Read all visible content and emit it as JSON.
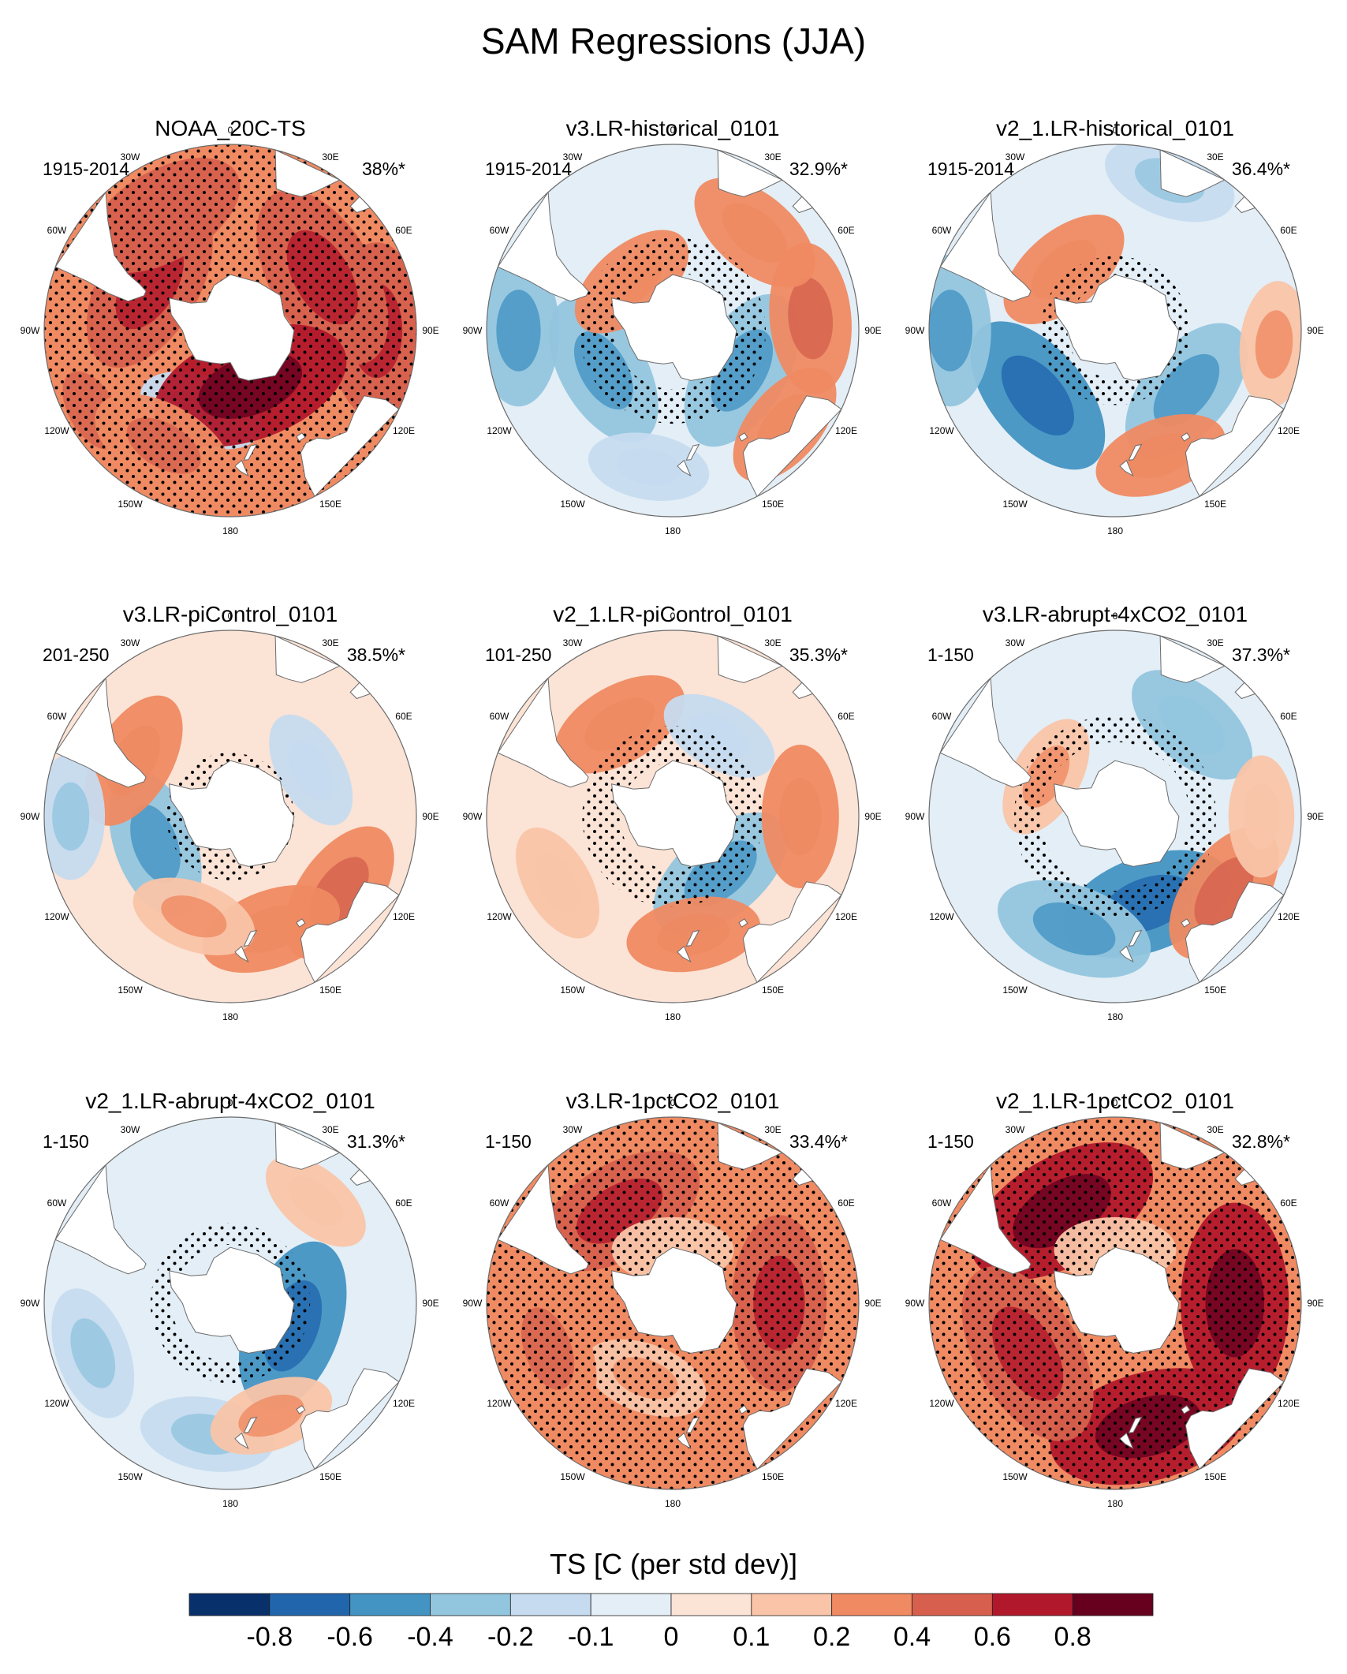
{
  "title": "SAM Regressions (JJA)",
  "colors": {
    "land": "#ffffff",
    "outline": "#6b6b6b",
    "stipple": "#000000",
    "levels": [
      "#08306b",
      "#2166ac",
      "#4393c3",
      "#92c5de",
      "#c6dbef",
      "#e3eef6",
      "#fbe3d6",
      "#f9c4a8",
      "#ef8a62",
      "#d6604d",
      "#b2182b",
      "#67001f"
    ]
  },
  "chart_data": {
    "type": "heatmap",
    "projection": "south-polar-stereographic",
    "variable": "TS",
    "longitude_labels": [
      "0",
      "30E",
      "60E",
      "90E",
      "120E",
      "150E",
      "180",
      "150W",
      "120W",
      "90W",
      "60W",
      "30W"
    ],
    "colorbar": {
      "label": "TS [C (per std dev)]",
      "ticks": [
        "-0.8",
        "-0.6",
        "-0.4",
        "-0.2",
        "-0.1",
        "0",
        "0.1",
        "0.2",
        "0.4",
        "0.6",
        "0.8"
      ],
      "boundaries": [
        -0.8,
        -0.6,
        -0.4,
        -0.2,
        -0.1,
        0,
        0.1,
        0.2,
        0.4,
        0.6,
        0.8
      ]
    },
    "panels": [
      {
        "title": "NOAA_20C-TS",
        "period": "1915-2014",
        "variance": "38%*",
        "background": 0.25,
        "features": [
          {
            "lon": 90,
            "lat": -35,
            "value": 0.45
          },
          {
            "lon": 240,
            "lat": -30,
            "value": 0.35
          },
          {
            "lon": 60,
            "lat": -50,
            "value": 0.55
          },
          {
            "lon": 300,
            "lat": -55,
            "value": 0.5
          },
          {
            "lon": 200,
            "lat": -58,
            "value": -0.15
          },
          {
            "lon": 160,
            "lat": -68,
            "value": 0.6
          },
          {
            "lon": 330,
            "lat": -40,
            "value": 0.4
          },
          {
            "lon": 210,
            "lat": -40,
            "value": 0.3
          }
        ],
        "stipple": {
          "min_lat": -90,
          "max_lat": -20
        }
      },
      {
        "title": "v3.LR-historical_0101",
        "period": "1915-2014",
        "variance": "32.9%*",
        "background": -0.02,
        "features": [
          {
            "lon": 120,
            "lat": -60,
            "value": -0.4
          },
          {
            "lon": 240,
            "lat": -60,
            "value": -0.35
          },
          {
            "lon": 270,
            "lat": -32,
            "value": -0.3
          },
          {
            "lon": 85,
            "lat": -38,
            "value": 0.3
          },
          {
            "lon": 40,
            "lat": -42,
            "value": 0.25
          },
          {
            "lon": 320,
            "lat": -66,
            "value": 0.2
          },
          {
            "lon": 190,
            "lat": -38,
            "value": -0.12
          },
          {
            "lon": 130,
            "lat": -35,
            "value": 0.2
          }
        ],
        "stipple": {
          "min_lat": -68,
          "max_lat": -55
        }
      },
      {
        "title": "v2_1.LR-historical_0101",
        "period": "1915-2014",
        "variance": "36.4%*",
        "background": -0.02,
        "features": [
          {
            "lon": 230,
            "lat": -52,
            "value": -0.45
          },
          {
            "lon": 130,
            "lat": -55,
            "value": -0.35
          },
          {
            "lon": 270,
            "lat": -28,
            "value": -0.3
          },
          {
            "lon": 320,
            "lat": -60,
            "value": 0.25
          },
          {
            "lon": 160,
            "lat": -40,
            "value": 0.2
          },
          {
            "lon": 20,
            "lat": -30,
            "value": -0.2
          },
          {
            "lon": 95,
            "lat": -30,
            "value": 0.15
          }
        ],
        "stipple": {
          "min_lat": -72,
          "max_lat": -62
        }
      },
      {
        "title": "v3.LR-piControl_0101",
        "period": "201-250",
        "variance": "38.5%*",
        "background": 0.02,
        "features": [
          {
            "lon": 250,
            "lat": -60,
            "value": -0.3
          },
          {
            "lon": 300,
            "lat": -48,
            "value": 0.25
          },
          {
            "lon": 125,
            "lat": -40,
            "value": 0.3
          },
          {
            "lon": 160,
            "lat": -45,
            "value": 0.25
          },
          {
            "lon": 270,
            "lat": -30,
            "value": -0.15
          },
          {
            "lon": 60,
            "lat": -55,
            "value": -0.12
          },
          {
            "lon": 200,
            "lat": -50,
            "value": 0.15
          }
        ],
        "stipple": {
          "min_lat": -76,
          "max_lat": -66
        }
      },
      {
        "title": "v2_1.LR-piControl_0101",
        "period": "101-250",
        "variance": "35.3%*",
        "background": 0.05,
        "features": [
          {
            "lon": 140,
            "lat": -62,
            "value": -0.35
          },
          {
            "lon": 90,
            "lat": -42,
            "value": 0.25
          },
          {
            "lon": 330,
            "lat": -50,
            "value": 0.25
          },
          {
            "lon": 170,
            "lat": -45,
            "value": 0.2
          },
          {
            "lon": 240,
            "lat": -40,
            "value": 0.12
          },
          {
            "lon": 30,
            "lat": -55,
            "value": -0.12
          }
        ],
        "stipple": {
          "min_lat": -70,
          "max_lat": -56
        }
      },
      {
        "title": "v3.LR-abrupt-4xCO2_0101",
        "period": "1-150",
        "variance": "37.3%*",
        "background": -0.03,
        "features": [
          {
            "lon": 160,
            "lat": -55,
            "value": -0.45
          },
          {
            "lon": 200,
            "lat": -45,
            "value": -0.35
          },
          {
            "lon": 40,
            "lat": -45,
            "value": -0.25
          },
          {
            "lon": 125,
            "lat": -40,
            "value": 0.3
          },
          {
            "lon": 300,
            "lat": -60,
            "value": 0.15
          },
          {
            "lon": 90,
            "lat": -35,
            "value": 0.12
          }
        ],
        "stipple": {
          "min_lat": -62,
          "max_lat": -52
        }
      },
      {
        "title": "v2_1.LR-abrupt-4xCO2_0101",
        "period": "1-150",
        "variance": "31.3%*",
        "background": -0.05,
        "features": [
          {
            "lon": 110,
            "lat": -65,
            "value": -0.45
          },
          {
            "lon": 250,
            "lat": -35,
            "value": -0.2
          },
          {
            "lon": 190,
            "lat": -40,
            "value": -0.2
          },
          {
            "lon": 160,
            "lat": -45,
            "value": 0.15
          },
          {
            "lon": 40,
            "lat": -40,
            "value": 0.1
          }
        ],
        "stipple": {
          "min_lat": -68,
          "max_lat": -60
        }
      },
      {
        "title": "v3.LR-1pctCO2_0101",
        "period": "1-150",
        "variance": "33.4%*",
        "background": 0.3,
        "features": [
          {
            "lon": 330,
            "lat": -50,
            "value": 0.45
          },
          {
            "lon": 90,
            "lat": -50,
            "value": 0.45
          },
          {
            "lon": 200,
            "lat": -60,
            "value": 0.15
          },
          {
            "lon": 250,
            "lat": -40,
            "value": 0.35
          },
          {
            "lon": 0,
            "lat": -70,
            "value": 0.12
          }
        ],
        "stipple": {
          "min_lat": -90,
          "max_lat": -20
        }
      },
      {
        "title": "v2_1.LR-1pctCO2_0101",
        "period": "1-150",
        "variance": "32.8%*",
        "background": 0.35,
        "features": [
          {
            "lon": 330,
            "lat": -50,
            "value": 0.6
          },
          {
            "lon": 90,
            "lat": -45,
            "value": 0.6
          },
          {
            "lon": 165,
            "lat": -42,
            "value": 0.6
          },
          {
            "lon": 240,
            "lat": -52,
            "value": 0.55
          },
          {
            "lon": 0,
            "lat": -70,
            "value": 0.12
          }
        ],
        "stipple": {
          "min_lat": -90,
          "max_lat": -20
        }
      }
    ]
  }
}
